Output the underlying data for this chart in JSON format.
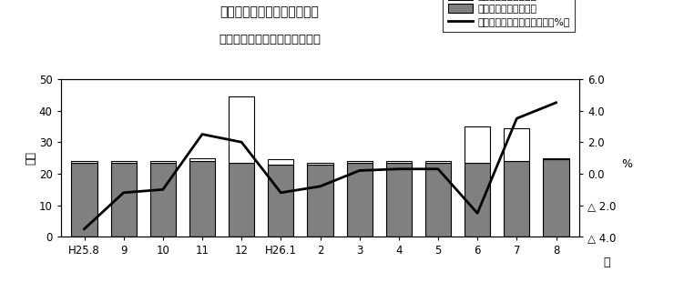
{
  "title_line1": "第１図　現金給与総額の推移",
  "title_line2": "（規模５人以上　調査産業計）",
  "xlabel": "月",
  "ylabel_left": "万円",
  "ylabel_right": "%",
  "categories": [
    "H25.8",
    "9",
    "10",
    "11",
    "12",
    "H26.1",
    "2",
    "3",
    "4",
    "5",
    "6",
    "7",
    "8"
  ],
  "regular_wages": [
    23.5,
    23.5,
    23.5,
    24.0,
    23.5,
    23.0,
    23.0,
    23.5,
    23.5,
    23.5,
    23.5,
    24.0,
    24.5
  ],
  "special_wages": [
    0.5,
    0.5,
    0.5,
    1.0,
    21.0,
    1.5,
    0.5,
    0.5,
    0.5,
    0.5,
    11.5,
    10.5,
    0.5
  ],
  "yoy_change": [
    -3.5,
    -1.2,
    -1.0,
    2.5,
    2.0,
    -1.2,
    -0.8,
    0.2,
    0.3,
    0.3,
    -2.5,
    3.5,
    4.5
  ],
  "ylim_left": [
    0,
    50
  ],
  "ylim_right": [
    -4.0,
    6.0
  ],
  "yticks_left": [
    0,
    10,
    20,
    30,
    40,
    50
  ],
  "yticks_right_vals": [
    6.0,
    4.0,
    2.0,
    0.0,
    -2.0,
    -4.0
  ],
  "bar_color_regular": "#808080",
  "bar_color_special": "#ffffff",
  "bar_edge_color": "#000000",
  "line_color": "#000000",
  "background_color": "#ffffff",
  "legend_label2": "きまって支給する給与",
  "legend_label3": "現金給与総額対前年同月比（%）",
  "fig_width": 7.4,
  "fig_height": 3.1,
  "dpi": 100
}
